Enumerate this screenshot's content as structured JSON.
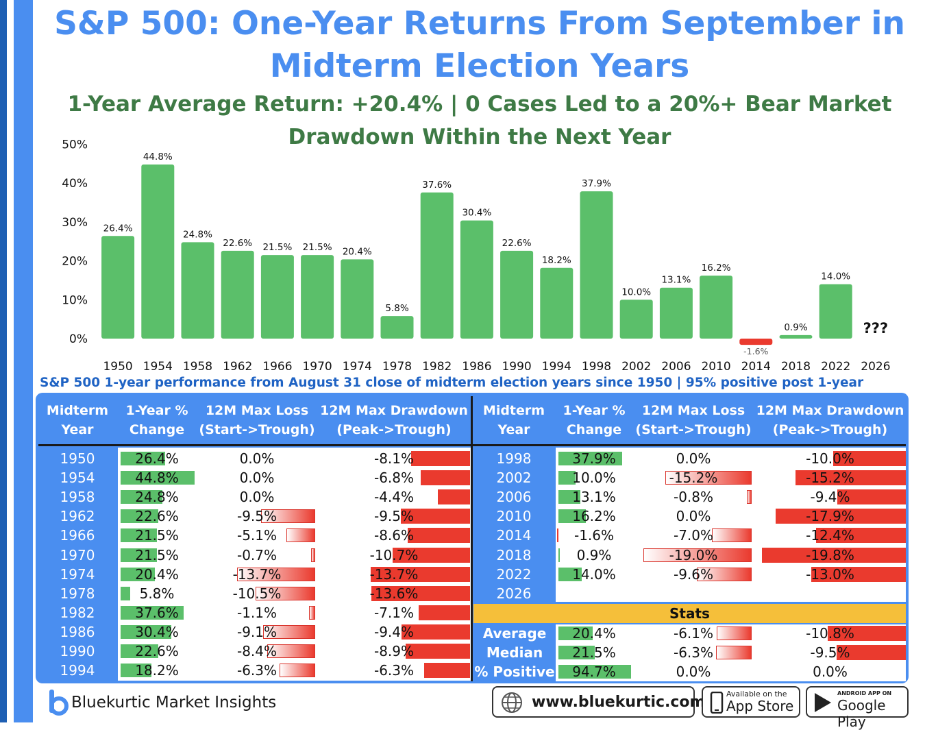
{
  "title": "S&P 500: One-Year Returns From September in Midterm Election Years",
  "subtitle": "1-Year Average Return: +20.4% | 0 Cases Led to a 20%+ Bear Market Drawdown Within the Next Year",
  "caption": "S&P 500 1-year performance from August 31 close of midterm election years since 1950 | 95% positive post 1-year",
  "colors": {
    "positive": "#5bbf6a",
    "negative": "#ea3a2e",
    "title": "#4a8ef0",
    "subtitle": "#3e7a45",
    "panel": "#4a8ef0",
    "stats": "#f5bf3a"
  },
  "chart_data": {
    "type": "bar",
    "categories": [
      "1950",
      "1954",
      "1958",
      "1962",
      "1966",
      "1970",
      "1974",
      "1978",
      "1982",
      "1986",
      "1990",
      "1994",
      "1998",
      "2002",
      "2006",
      "2010",
      "2014",
      "2018",
      "2022",
      "2026"
    ],
    "values": [
      26.4,
      44.8,
      24.8,
      22.6,
      21.5,
      21.5,
      20.4,
      5.8,
      37.6,
      30.4,
      22.6,
      18.2,
      37.9,
      10.0,
      13.1,
      16.2,
      -1.6,
      0.9,
      14.0,
      null
    ],
    "value_labels": [
      "26.4%",
      "44.8%",
      "24.8%",
      "22.6%",
      "21.5%",
      "21.5%",
      "20.4%",
      "5.8%",
      "37.6%",
      "30.4%",
      "22.6%",
      "18.2%",
      "37.9%",
      "10.0%",
      "13.1%",
      "16.2%",
      "-1.6%",
      "0.9%",
      "14.0%",
      "???"
    ],
    "yticks": [
      "0%",
      "10%",
      "20%",
      "30%",
      "40%",
      "50%"
    ],
    "ylim": [
      0,
      50
    ],
    "grid": false
  },
  "table": {
    "headers": [
      [
        "Midterm",
        "Year"
      ],
      [
        "1-Year %",
        "Change"
      ],
      [
        "12M Max Loss",
        "(Start->Trough)"
      ],
      [
        "12M Max Drawdown",
        "(Peak->Trough)"
      ]
    ],
    "left_rows": [
      {
        "year": "1950",
        "change": 26.4,
        "change_label": "26.4%",
        "loss": 0.0,
        "loss_label": "0.0%",
        "dd": -8.1,
        "dd_label": "-8.1%"
      },
      {
        "year": "1954",
        "change": 44.8,
        "change_label": "44.8%",
        "loss": 0.0,
        "loss_label": "0.0%",
        "dd": -6.8,
        "dd_label": "-6.8%"
      },
      {
        "year": "1958",
        "change": 24.8,
        "change_label": "24.8%",
        "loss": 0.0,
        "loss_label": "0.0%",
        "dd": -4.4,
        "dd_label": "-4.4%"
      },
      {
        "year": "1962",
        "change": 22.6,
        "change_label": "22.6%",
        "loss": -9.5,
        "loss_label": "-9.5%",
        "dd": -9.5,
        "dd_label": "-9.5%"
      },
      {
        "year": "1966",
        "change": 21.5,
        "change_label": "21.5%",
        "loss": -5.1,
        "loss_label": "-5.1%",
        "dd": -8.6,
        "dd_label": "-8.6%"
      },
      {
        "year": "1970",
        "change": 21.5,
        "change_label": "21.5%",
        "loss": -0.7,
        "loss_label": "-0.7%",
        "dd": -10.7,
        "dd_label": "-10.7%"
      },
      {
        "year": "1974",
        "change": 20.4,
        "change_label": "20.4%",
        "loss": -13.7,
        "loss_label": "-13.7%",
        "dd": -13.7,
        "dd_label": "-13.7%"
      },
      {
        "year": "1978",
        "change": 5.8,
        "change_label": "5.8%",
        "loss": -10.5,
        "loss_label": "-10.5%",
        "dd": -13.6,
        "dd_label": "-13.6%"
      },
      {
        "year": "1982",
        "change": 37.6,
        "change_label": "37.6%",
        "loss": -1.1,
        "loss_label": "-1.1%",
        "dd": -7.1,
        "dd_label": "-7.1%"
      },
      {
        "year": "1986",
        "change": 30.4,
        "change_label": "30.4%",
        "loss": -9.1,
        "loss_label": "-9.1%",
        "dd": -9.4,
        "dd_label": "-9.4%"
      },
      {
        "year": "1990",
        "change": 22.6,
        "change_label": "22.6%",
        "loss": -8.4,
        "loss_label": "-8.4%",
        "dd": -8.9,
        "dd_label": "-8.9%"
      },
      {
        "year": "1994",
        "change": 18.2,
        "change_label": "18.2%",
        "loss": -6.3,
        "loss_label": "-6.3%",
        "dd": -6.3,
        "dd_label": "-6.3%"
      }
    ],
    "right_rows": [
      {
        "year": "1998",
        "change": 37.9,
        "change_label": "37.9%",
        "loss": 0.0,
        "loss_label": "0.0%",
        "dd": -10.0,
        "dd_label": "-10.0%"
      },
      {
        "year": "2002",
        "change": 10.0,
        "change_label": "10.0%",
        "loss": -15.2,
        "loss_label": "-15.2%",
        "dd": -15.2,
        "dd_label": "-15.2%"
      },
      {
        "year": "2006",
        "change": 13.1,
        "change_label": "13.1%",
        "loss": -0.8,
        "loss_label": "-0.8%",
        "dd": -9.4,
        "dd_label": "-9.4%"
      },
      {
        "year": "2010",
        "change": 16.2,
        "change_label": "16.2%",
        "loss": 0.0,
        "loss_label": "0.0%",
        "dd": -17.9,
        "dd_label": "-17.9%"
      },
      {
        "year": "2014",
        "change": -1.6,
        "change_label": "-1.6%",
        "loss": -7.0,
        "loss_label": "-7.0%",
        "dd": -12.4,
        "dd_label": "-12.4%"
      },
      {
        "year": "2018",
        "change": 0.9,
        "change_label": "0.9%",
        "loss": -19.0,
        "loss_label": "-19.0%",
        "dd": -19.8,
        "dd_label": "-19.8%"
      },
      {
        "year": "2022",
        "change": 14.0,
        "change_label": "14.0%",
        "loss": -9.6,
        "loss_label": "-9.6%",
        "dd": -13.0,
        "dd_label": "-13.0%"
      },
      {
        "year": "2026",
        "change": null,
        "change_label": "",
        "loss": null,
        "loss_label": "",
        "dd": null,
        "dd_label": ""
      }
    ],
    "stats_title": "Stats",
    "stats_rows": [
      {
        "label": "Average",
        "change": 20.4,
        "change_label": "20.4%",
        "loss": -6.1,
        "loss_label": "-6.1%",
        "dd": -10.8,
        "dd_label": "-10.8%"
      },
      {
        "label": "Median",
        "change": 21.5,
        "change_label": "21.5%",
        "loss": -6.3,
        "loss_label": "-6.3%",
        "dd": -9.5,
        "dd_label": "-9.5%"
      },
      {
        "label": "% Positive",
        "change": 94.7,
        "change_label": "94.7%",
        "loss": 0.0,
        "loss_label": "0.0%",
        "dd": 0.0,
        "dd_label": "0.0%"
      }
    ]
  },
  "footer": {
    "brand": "Bluekurtic Market Insights",
    "website": "www.bluekurtic.com",
    "appstore_small": "Available on the",
    "appstore_big": "App Store",
    "googleplay_small": "ANDROID APP ON",
    "googleplay_big": "Google Play",
    "icons": [
      "bluekurtic-logo-icon",
      "globe-icon",
      "phone-icon",
      "play-triangle-icon"
    ]
  }
}
